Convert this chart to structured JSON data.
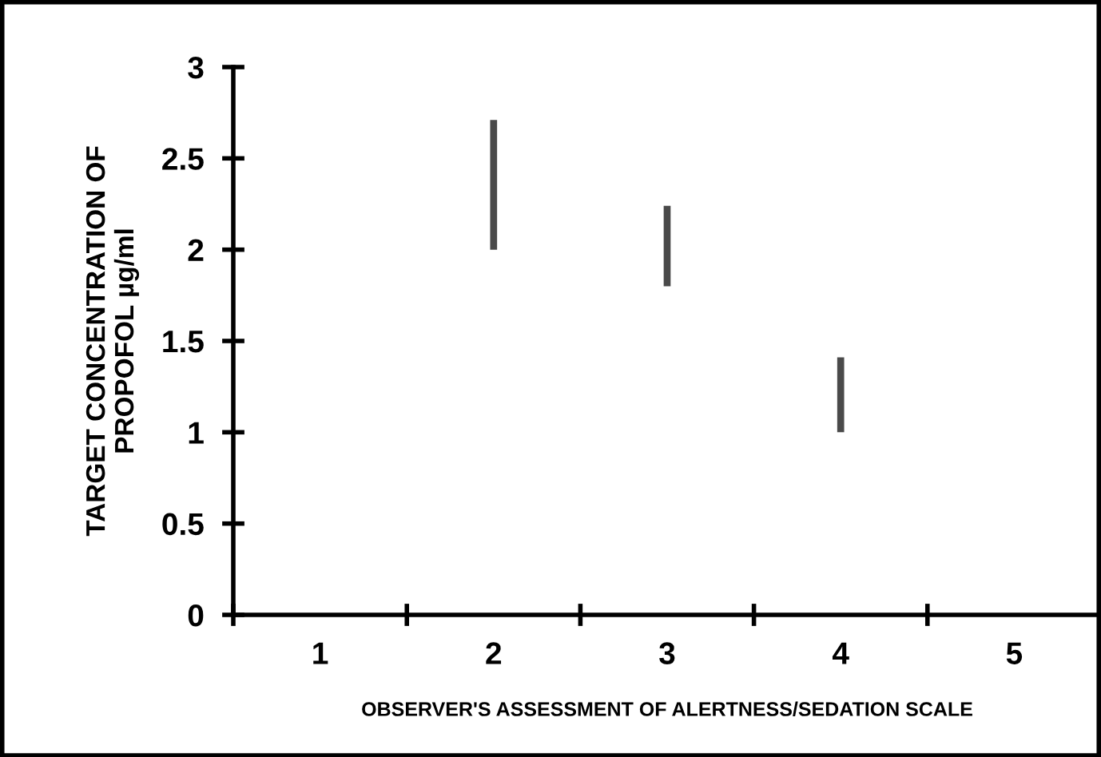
{
  "chart_data": {
    "type": "bar",
    "xlabel": "OBSERVER'S ASSESSMENT OF ALERTNESS/SEDATION SCALE",
    "ylabel": "TARGET CONCENTRATION OF\nPROPOFOL µg/ml",
    "categories": [
      "1",
      "2",
      "3",
      "4",
      "5"
    ],
    "base": [
      null,
      2.0,
      1.8,
      1.0,
      null
    ],
    "values": [
      null,
      0.71,
      0.44,
      0.41,
      null
    ],
    "color": "#4a4a4a",
    "ylim": [
      0,
      3
    ],
    "yticks": [
      0,
      0.5,
      1,
      1.5,
      2,
      2.5,
      3
    ],
    "grid": false,
    "legend": false
  }
}
